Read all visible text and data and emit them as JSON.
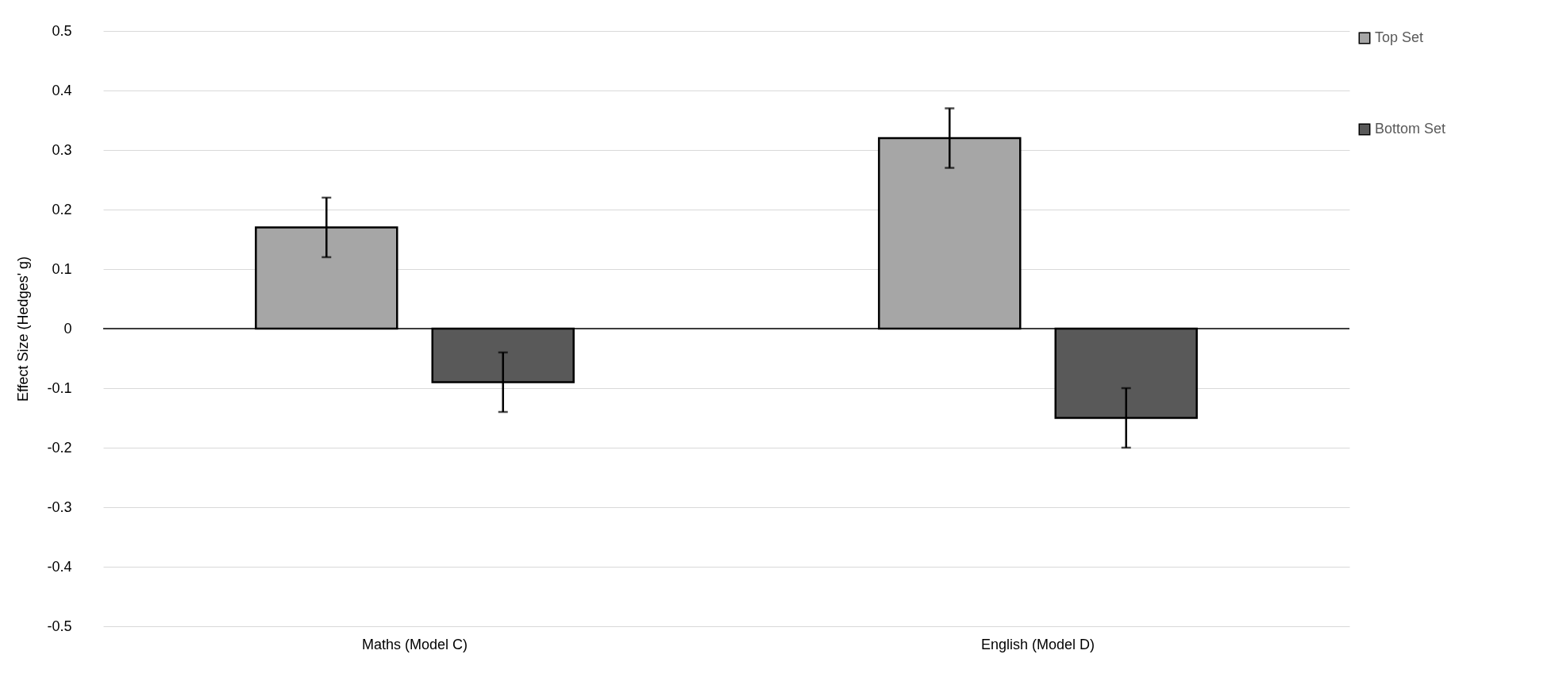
{
  "chart_data": {
    "type": "bar",
    "ylabel": "Effect Size (Hedges' g)",
    "categories": [
      "Maths (Model C)",
      "English (Model D)"
    ],
    "series": [
      {
        "name": "Top Set",
        "color": "#a6a6a6",
        "values": [
          0.17,
          0.32
        ],
        "errors": [
          0.05,
          0.05
        ]
      },
      {
        "name": "Bottom Set",
        "color": "#595959",
        "values": [
          -0.09,
          -0.15
        ],
        "errors": [
          0.05,
          0.05
        ]
      }
    ],
    "ylim": [
      -0.5,
      0.5
    ],
    "yticks": [
      -0.5,
      -0.4,
      -0.3,
      -0.2,
      -0.1,
      0,
      0.1,
      0.2,
      0.3,
      0.4,
      0.5
    ],
    "grid": "y",
    "legend": "right",
    "ref_lines": [
      {
        "axis": "y",
        "value": 0,
        "color": "#000000"
      }
    ]
  }
}
